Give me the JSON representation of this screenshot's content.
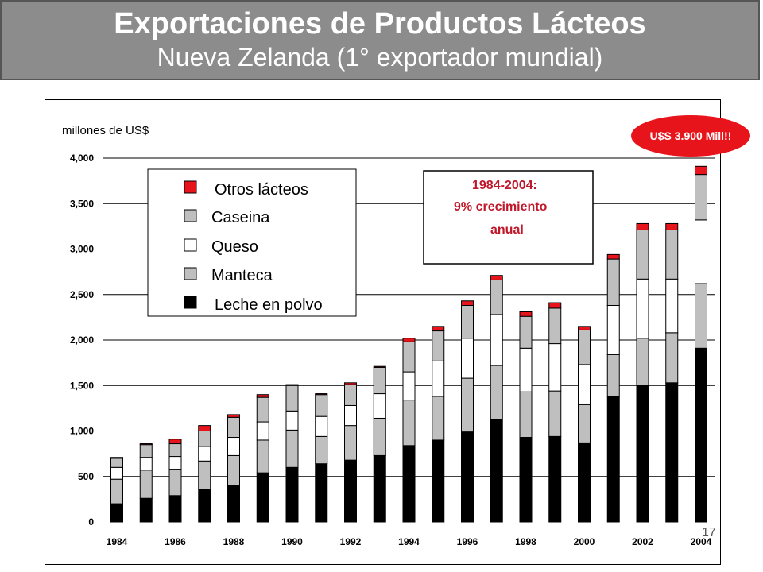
{
  "header": {
    "title": "Exportaciones de Productos Lácteos",
    "subtitle": "Nueva Zelanda (1° exportador mundial)"
  },
  "page_number": "17",
  "badge": {
    "text": "U$S 3.900 Mill!!"
  },
  "callout": {
    "line1": "1984-2004:",
    "line2": "9% crecimiento",
    "line3": "anual"
  },
  "colors": {
    "leche_en_polvo": "#000000",
    "manteca": "#bfbfbf",
    "queso": "#ffffff",
    "caseina": "#bfbfbf",
    "otros_lacteos": "#e8141b",
    "title_bg": "#8c8c8c",
    "callout_text": "#c0182a"
  },
  "chart_data": {
    "type": "bar",
    "stacked": true,
    "ylabel": "millones de US$",
    "ylim": [
      0,
      4000
    ],
    "yticks": [
      "0",
      "500",
      "1,000",
      "1,500",
      "2,000",
      "2,500",
      "3,000",
      "3,500",
      "4,000"
    ],
    "ytick_values": [
      0,
      500,
      1000,
      1500,
      2000,
      2500,
      3000,
      3500,
      4000
    ],
    "categories": [
      "1984",
      "1985",
      "1986",
      "1987",
      "1988",
      "1989",
      "1990",
      "1991",
      "1992",
      "1993",
      "1994",
      "1995",
      "1996",
      "1997",
      "1998",
      "1999",
      "2000",
      "2001",
      "2002",
      "2003",
      "2004"
    ],
    "xtick_labels": [
      "1984",
      "1986",
      "1988",
      "1990",
      "1992",
      "1994",
      "1996",
      "1998",
      "2000",
      "2002",
      "2004"
    ],
    "legend": [
      "Otros lácteos",
      "Caseina",
      "Queso",
      "Manteca",
      "Leche en polvo"
    ],
    "series": [
      {
        "name": "Leche en polvo",
        "values": [
          200,
          260,
          290,
          360,
          400,
          540,
          600,
          640,
          680,
          730,
          840,
          900,
          990,
          1130,
          930,
          940,
          870,
          1380,
          1500,
          1530,
          1910
        ]
      },
      {
        "name": "Manteca",
        "values": [
          270,
          310,
          290,
          310,
          330,
          360,
          410,
          300,
          380,
          410,
          500,
          480,
          590,
          590,
          500,
          500,
          420,
          460,
          520,
          550,
          710
        ]
      },
      {
        "name": "Queso",
        "values": [
          130,
          140,
          140,
          160,
          200,
          200,
          210,
          220,
          220,
          270,
          310,
          390,
          440,
          560,
          480,
          520,
          440,
          540,
          650,
          590,
          700
        ]
      },
      {
        "name": "Caseina",
        "values": [
          100,
          140,
          140,
          170,
          220,
          270,
          280,
          240,
          230,
          290,
          330,
          330,
          360,
          380,
          350,
          390,
          380,
          510,
          540,
          540,
          500
        ]
      },
      {
        "name": "Otros lácteos",
        "values": [
          10,
          10,
          50,
          60,
          30,
          30,
          10,
          10,
          20,
          10,
          40,
          50,
          50,
          50,
          50,
          60,
          40,
          50,
          70,
          70,
          90
        ]
      }
    ],
    "total_2004_label": "U$S 3.900 Mill!!"
  }
}
